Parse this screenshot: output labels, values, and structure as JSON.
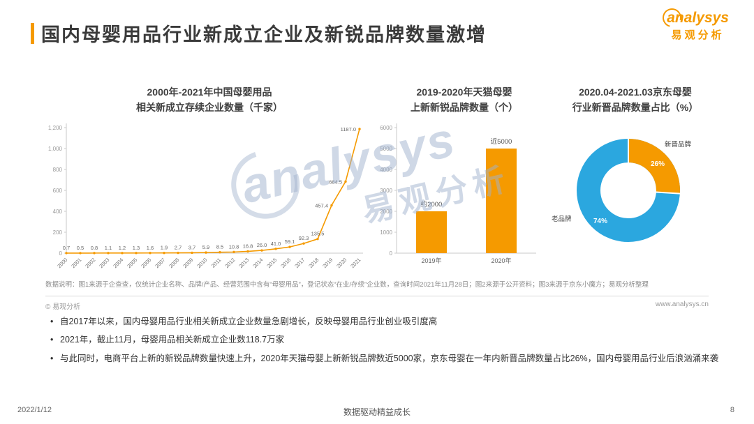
{
  "page": {
    "title": "国内母婴用品行业新成立企业及新锐品牌数量激增",
    "note": "数据说明：图1来源于企查查，仅统计企业名称、品牌/产品、经营范围中含有“母婴用品”，登记状态“在业/存续”企业数，查询时间2021年11月28日；图2来源于公开资料；图3来源于京东小魔方；易观分析整理",
    "copyright": "© 易观分析",
    "website": "www.analysys.cn",
    "bullets": [
      "自2017年以来，国内母婴用品行业相关新成立企业数量急剧增长，反映母婴用品行业创业吸引度高",
      "2021年，截止11月，母婴用品相关新成立企业数118.7万家",
      "与此同时，电商平台上新的新锐品牌数量快速上升，2020年天猫母婴上新新锐品牌数近5000家，京东母婴在一年内新晋品牌数量占比26%，国内母婴用品行业后浪汹涌来袭"
    ],
    "footer": {
      "date": "2022/1/12",
      "slogan": "数据驱动精益成长",
      "page_number": "8"
    }
  },
  "logo": {
    "en": "analysys",
    "cn": "易观分析"
  },
  "watermark": {
    "en": "analysys",
    "cn": "易观分析"
  },
  "colors": {
    "accent": "#F59A00",
    "blue": "#2BA7DF",
    "title_text": "#3A3A3A",
    "axis_text": "#999999",
    "label_text": "#666666"
  },
  "chart_data": [
    {
      "type": "line",
      "title_line1": "2000年-2021年中国母婴用品",
      "title_line2": "相关新成立存续企业数量（千家）",
      "categories": [
        "2000",
        "2001",
        "2002",
        "2003",
        "2004",
        "2005",
        "2006",
        "2007",
        "2008",
        "2009",
        "2010",
        "2011",
        "2012",
        "2013",
        "2014",
        "2015",
        "2016",
        "2017",
        "2018",
        "2019",
        "2020",
        "2021"
      ],
      "values": [
        0.7,
        0.5,
        0.8,
        1.1,
        1.2,
        1.3,
        1.6,
        1.9,
        2.7,
        3.7,
        5.9,
        8.5,
        10.8,
        16.8,
        26.0,
        41.0,
        59.1,
        92.3,
        135.5,
        457.4,
        684.5,
        1187.0
      ],
      "ylim": [
        0,
        1200
      ],
      "ytick_step": 200,
      "grid": false,
      "legend": "none",
      "color": "#F59A00"
    },
    {
      "type": "bar",
      "title_line1": "2019-2020年天猫母婴",
      "title_line2": "上新新锐品牌数量（个）",
      "categories": [
        "2019年",
        "2020年"
      ],
      "values": [
        2000,
        5000
      ],
      "value_labels": [
        "约2000",
        "近5000"
      ],
      "ylim": [
        0,
        6000
      ],
      "ytick_step": 1000,
      "grid": false,
      "legend": "none",
      "color": "#F59A00"
    },
    {
      "type": "pie",
      "subtype": "donut",
      "title_line1": "2020.04-2021.03京东母婴",
      "title_line2": "行业新晋品牌数量占比（%）",
      "slices": [
        {
          "label": "新晋品牌",
          "value": 26,
          "value_label": "26%",
          "color": "#F59A00"
        },
        {
          "label": "老品牌",
          "value": 74,
          "value_label": "74%",
          "color": "#2BA7DF"
        }
      ]
    }
  ]
}
